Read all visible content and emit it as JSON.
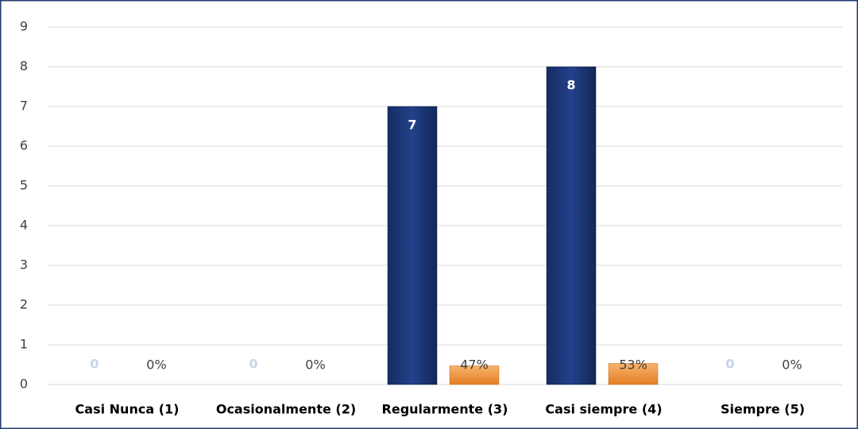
{
  "chart_data": {
    "type": "bar",
    "categories": [
      "Casi Nunca (1)",
      "Ocasionalmente (2)",
      "Regularmente (3)",
      "Casi siempre (4)",
      "Siempre (5)"
    ],
    "series": [
      {
        "color": "#1f3a7a",
        "values": [
          0,
          0,
          7,
          8,
          0
        ]
      },
      {
        "color": "#f0913a",
        "values": [
          0,
          0,
          0.47,
          0.53,
          0
        ],
        "value_labels": [
          "0%",
          "0%",
          "47%",
          "53%",
          "0%"
        ]
      }
    ],
    "ylim": [
      0,
      9
    ],
    "yticks": [
      0,
      1,
      2,
      3,
      4,
      5,
      6,
      7,
      8,
      9
    ],
    "grid": true
  }
}
